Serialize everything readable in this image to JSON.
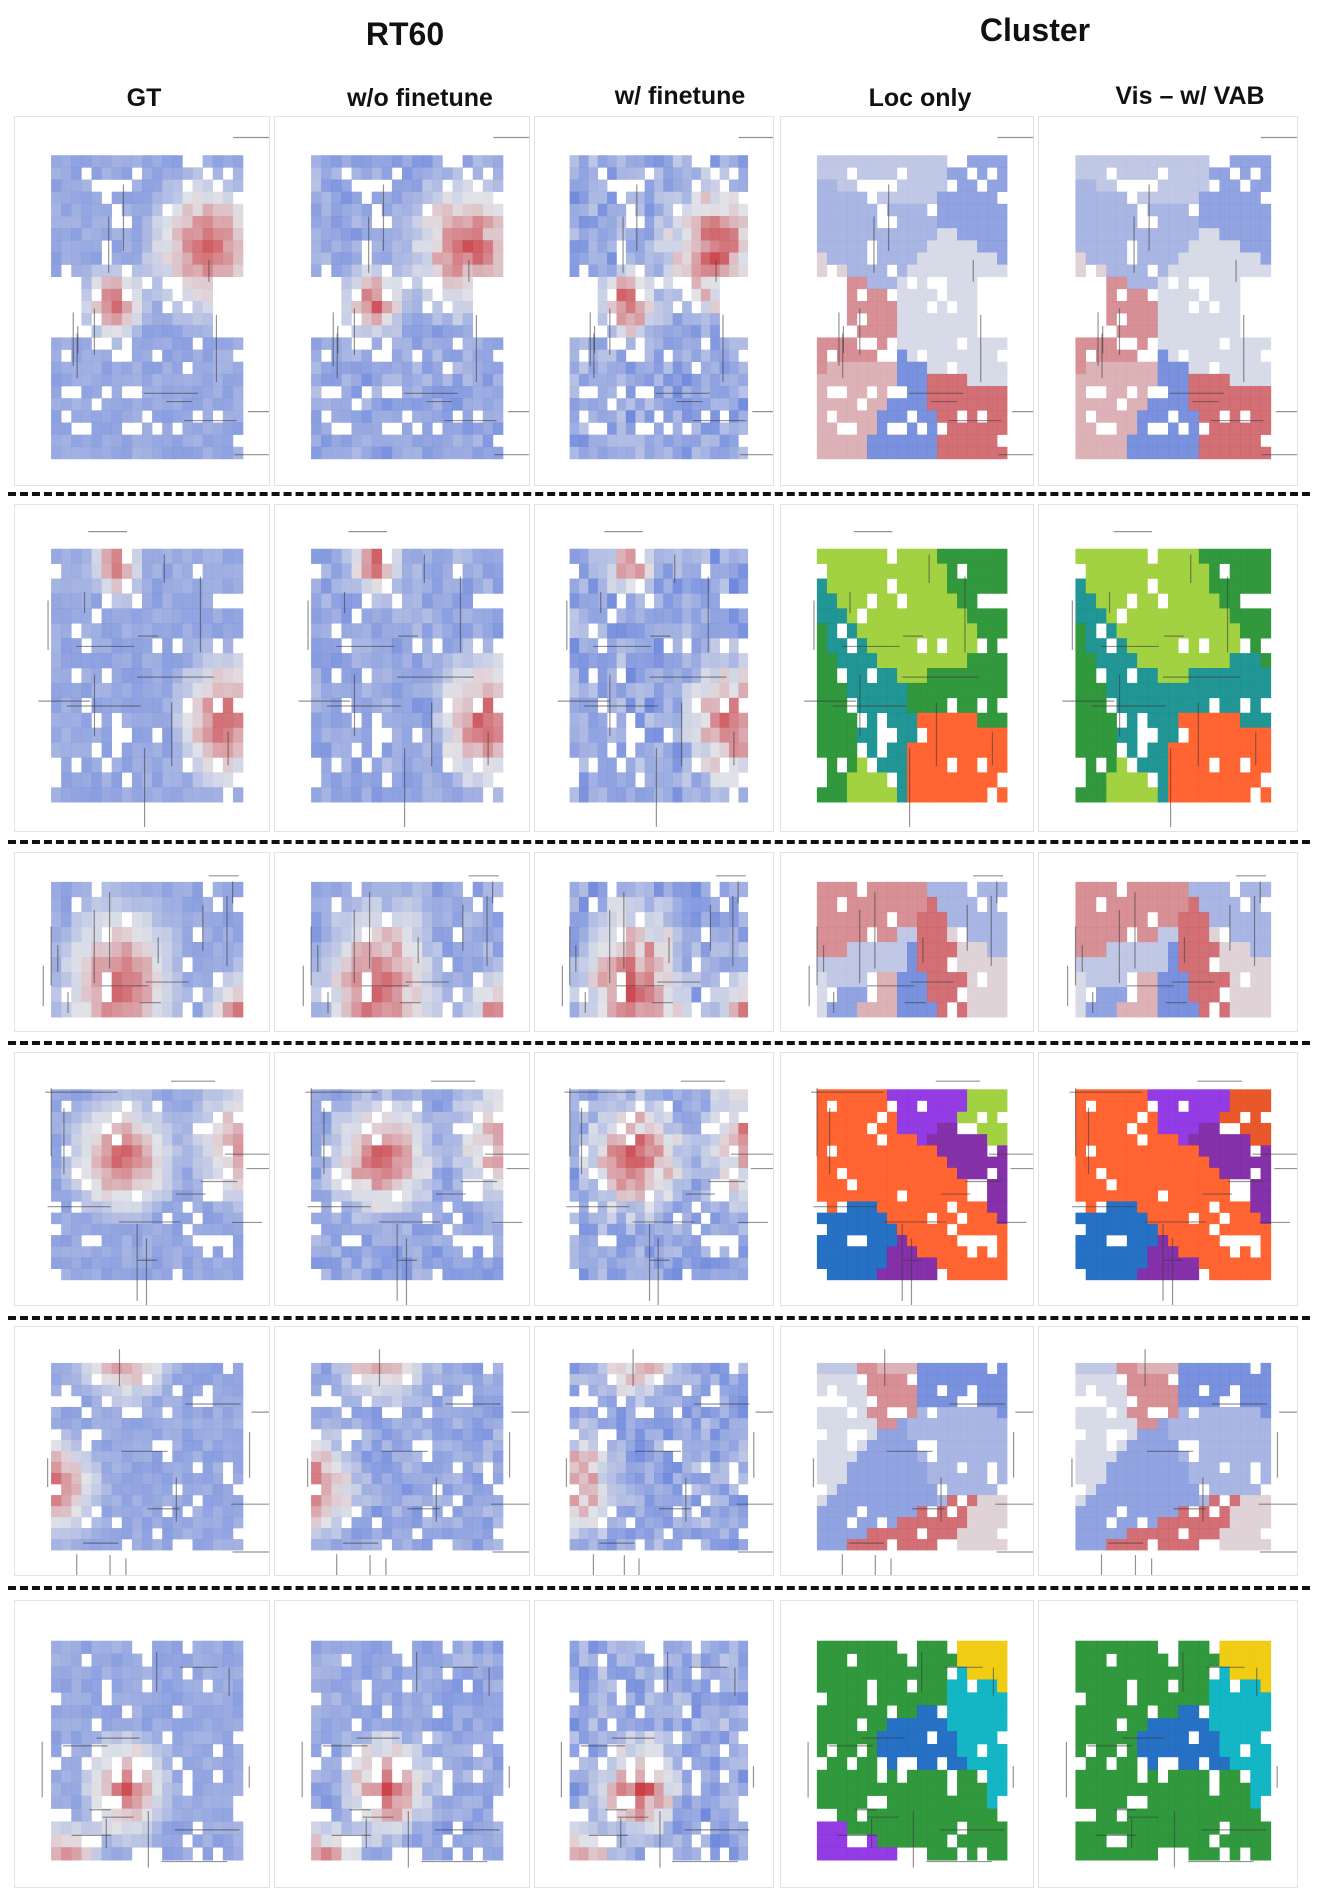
{
  "headers": {
    "groups": {
      "rt60": "RT60",
      "cluster": "Cluster"
    },
    "columns": [
      "GT",
      "w/o finetune",
      "w/ finetune",
      "Loc only",
      "Vis – w/ VAB"
    ]
  },
  "colors": {
    "heat_low": "#4f6fd6",
    "heat_mid": "#dcdde3",
    "heat_high": "#c0141c",
    "cluster_palette": [
      "#e8131b",
      "#f0a30a",
      "#8a2be2",
      "#e01ea0",
      "#1f8f2e",
      "#1565c0",
      "#0f8c8c",
      "#2a8fd0",
      "#6a1a9a",
      "#d81b60",
      "#f0c800",
      "#a0522d",
      "#9acd32",
      "#7b1fa2",
      "#e64a19",
      "#d06a6a",
      "#00b0c0",
      "#ff5722"
    ]
  },
  "rows": [
    {
      "kind": "heat"
    },
    {
      "kind": "cat"
    },
    {
      "kind": "heat"
    },
    {
      "kind": "cat"
    },
    {
      "kind": "heat"
    },
    {
      "kind": "cat"
    }
  ]
}
